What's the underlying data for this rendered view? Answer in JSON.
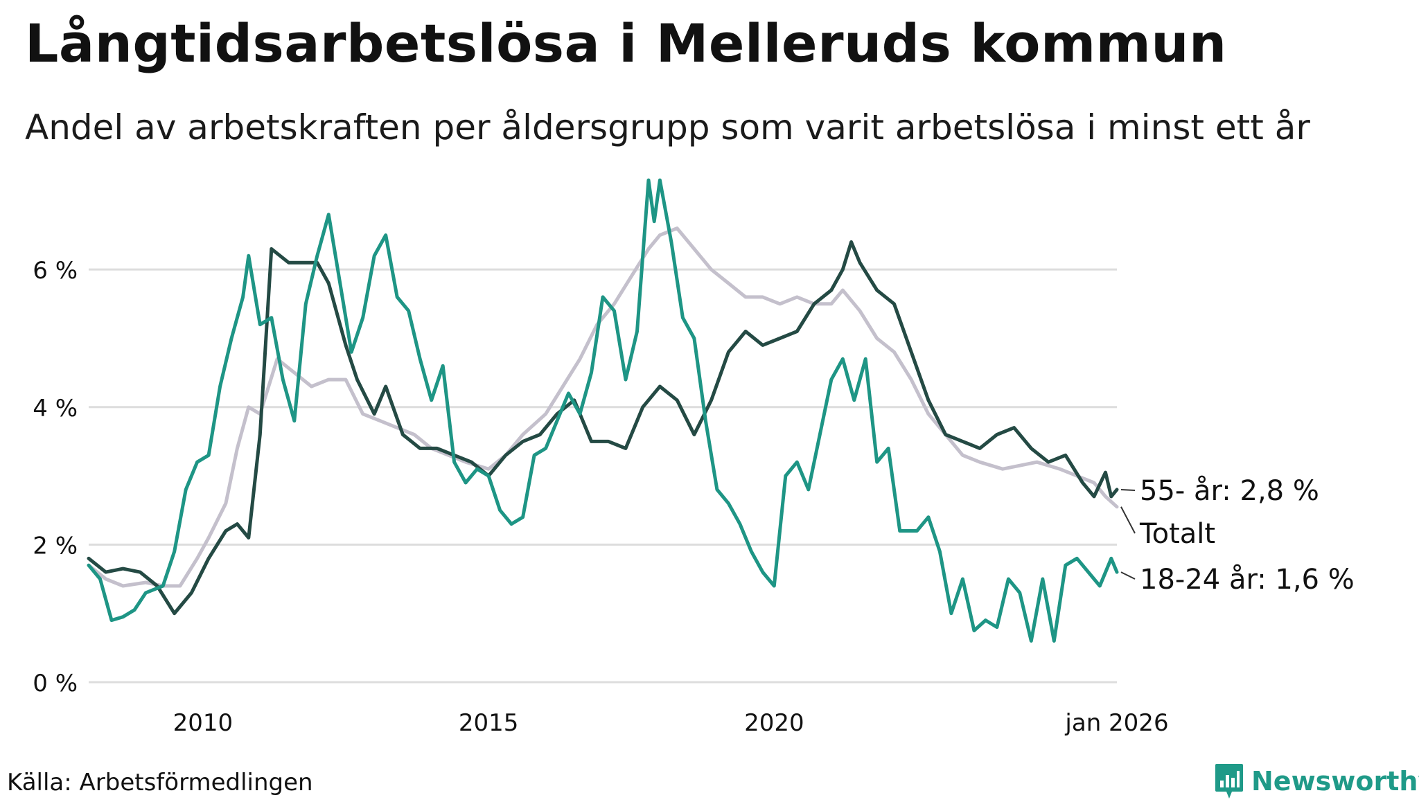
{
  "title": "Långtidsarbetslösa i Melleruds kommun",
  "subtitle": "Andel av arbetskraften per åldersgrupp som varit arbetslösa i minst ett år",
  "source": "Källa: Arbetsförmedlingen",
  "brand": "Newsworthy",
  "colors": {
    "totalt": "#c4c0cc",
    "age55": "#244a44",
    "age18_24": "#1e9585",
    "grid": "#dddddd",
    "brand": "#1f9a88"
  },
  "chart_data": {
    "type": "line",
    "title": "Långtidsarbetslösa i Melleruds kommun",
    "xlabel": "",
    "ylabel": "",
    "ylim": [
      0,
      7.2
    ],
    "xlim": [
      2008.0,
      2026.0
    ],
    "y_ticks": [
      {
        "value": 0,
        "label": "0 %"
      },
      {
        "value": 2,
        "label": "2 %"
      },
      {
        "value": 4,
        "label": "4 %"
      },
      {
        "value": 6,
        "label": "6 %"
      }
    ],
    "x_ticks": [
      {
        "value": 2010,
        "label": "2010"
      },
      {
        "value": 2015,
        "label": "2015"
      },
      {
        "value": 2020,
        "label": "2020"
      },
      {
        "value": 2026,
        "label": "jan 2026"
      }
    ],
    "series": [
      {
        "name": "Totalt",
        "label": "Totalt",
        "color": "#c4c0cc",
        "points": [
          [
            2008.0,
            1.7
          ],
          [
            2008.3,
            1.5
          ],
          [
            2008.6,
            1.4
          ],
          [
            2009.0,
            1.45
          ],
          [
            2009.3,
            1.4
          ],
          [
            2009.6,
            1.4
          ],
          [
            2009.9,
            1.8
          ],
          [
            2010.1,
            2.1
          ],
          [
            2010.4,
            2.6
          ],
          [
            2010.6,
            3.4
          ],
          [
            2010.8,
            4.0
          ],
          [
            2011.0,
            3.9
          ],
          [
            2011.3,
            4.7
          ],
          [
            2011.6,
            4.5
          ],
          [
            2011.9,
            4.3
          ],
          [
            2012.2,
            4.4
          ],
          [
            2012.5,
            4.4
          ],
          [
            2012.8,
            3.9
          ],
          [
            2013.1,
            3.8
          ],
          [
            2013.4,
            3.7
          ],
          [
            2013.7,
            3.6
          ],
          [
            2014.0,
            3.4
          ],
          [
            2014.3,
            3.3
          ],
          [
            2014.6,
            3.2
          ],
          [
            2015.0,
            3.1
          ],
          [
            2015.3,
            3.3
          ],
          [
            2015.6,
            3.6
          ],
          [
            2016.0,
            3.9
          ],
          [
            2016.3,
            4.3
          ],
          [
            2016.6,
            4.7
          ],
          [
            2016.9,
            5.2
          ],
          [
            2017.2,
            5.5
          ],
          [
            2017.5,
            5.9
          ],
          [
            2017.8,
            6.3
          ],
          [
            2018.0,
            6.5
          ],
          [
            2018.3,
            6.6
          ],
          [
            2018.6,
            6.3
          ],
          [
            2018.9,
            6.0
          ],
          [
            2019.2,
            5.8
          ],
          [
            2019.5,
            5.6
          ],
          [
            2019.8,
            5.6
          ],
          [
            2020.1,
            5.5
          ],
          [
            2020.4,
            5.6
          ],
          [
            2020.7,
            5.5
          ],
          [
            2021.0,
            5.5
          ],
          [
            2021.2,
            5.7
          ],
          [
            2021.5,
            5.4
          ],
          [
            2021.8,
            5.0
          ],
          [
            2022.1,
            4.8
          ],
          [
            2022.4,
            4.4
          ],
          [
            2022.7,
            3.9
          ],
          [
            2023.0,
            3.6
          ],
          [
            2023.3,
            3.3
          ],
          [
            2023.6,
            3.2
          ],
          [
            2024.0,
            3.1
          ],
          [
            2024.3,
            3.15
          ],
          [
            2024.6,
            3.2
          ],
          [
            2025.0,
            3.1
          ],
          [
            2025.3,
            3.0
          ],
          [
            2025.6,
            2.9
          ],
          [
            2025.8,
            2.7
          ],
          [
            2026.0,
            2.55
          ]
        ]
      },
      {
        "name": "55- år",
        "label": "55- år: 2,8 %",
        "color": "#244a44",
        "points": [
          [
            2008.0,
            1.8
          ],
          [
            2008.3,
            1.6
          ],
          [
            2008.6,
            1.65
          ],
          [
            2008.9,
            1.6
          ],
          [
            2009.2,
            1.4
          ],
          [
            2009.5,
            1.0
          ],
          [
            2009.8,
            1.3
          ],
          [
            2010.1,
            1.8
          ],
          [
            2010.4,
            2.2
          ],
          [
            2010.6,
            2.3
          ],
          [
            2010.8,
            2.1
          ],
          [
            2011.0,
            3.6
          ],
          [
            2011.2,
            6.3
          ],
          [
            2011.5,
            6.1
          ],
          [
            2011.7,
            6.1
          ],
          [
            2012.0,
            6.1
          ],
          [
            2012.2,
            5.8
          ],
          [
            2012.5,
            4.9
          ],
          [
            2012.7,
            4.4
          ],
          [
            2013.0,
            3.9
          ],
          [
            2013.2,
            4.3
          ],
          [
            2013.5,
            3.6
          ],
          [
            2013.8,
            3.4
          ],
          [
            2014.1,
            3.4
          ],
          [
            2014.4,
            3.3
          ],
          [
            2014.7,
            3.2
          ],
          [
            2015.0,
            3.0
          ],
          [
            2015.3,
            3.3
          ],
          [
            2015.6,
            3.5
          ],
          [
            2015.9,
            3.6
          ],
          [
            2016.2,
            3.9
          ],
          [
            2016.5,
            4.1
          ],
          [
            2016.8,
            3.5
          ],
          [
            2017.1,
            3.5
          ],
          [
            2017.4,
            3.4
          ],
          [
            2017.7,
            4.0
          ],
          [
            2018.0,
            4.3
          ],
          [
            2018.3,
            4.1
          ],
          [
            2018.6,
            3.6
          ],
          [
            2018.9,
            4.1
          ],
          [
            2019.2,
            4.8
          ],
          [
            2019.5,
            5.1
          ],
          [
            2019.8,
            4.9
          ],
          [
            2020.1,
            5.0
          ],
          [
            2020.4,
            5.1
          ],
          [
            2020.7,
            5.5
          ],
          [
            2021.0,
            5.7
          ],
          [
            2021.2,
            6.0
          ],
          [
            2021.35,
            6.4
          ],
          [
            2021.5,
            6.1
          ],
          [
            2021.8,
            5.7
          ],
          [
            2022.1,
            5.5
          ],
          [
            2022.4,
            4.8
          ],
          [
            2022.7,
            4.1
          ],
          [
            2023.0,
            3.6
          ],
          [
            2023.3,
            3.5
          ],
          [
            2023.6,
            3.4
          ],
          [
            2023.9,
            3.6
          ],
          [
            2024.2,
            3.7
          ],
          [
            2024.5,
            3.4
          ],
          [
            2024.8,
            3.2
          ],
          [
            2025.1,
            3.3
          ],
          [
            2025.4,
            2.9
          ],
          [
            2025.6,
            2.7
          ],
          [
            2025.8,
            3.05
          ],
          [
            2025.9,
            2.7
          ],
          [
            2026.0,
            2.8
          ]
        ]
      },
      {
        "name": "18-24 år",
        "label": "18-24 år: 1,6 %",
        "color": "#1e9585",
        "points": [
          [
            2008.0,
            1.7
          ],
          [
            2008.2,
            1.5
          ],
          [
            2008.4,
            0.9
          ],
          [
            2008.6,
            0.95
          ],
          [
            2008.8,
            1.05
          ],
          [
            2009.0,
            1.3
          ],
          [
            2009.3,
            1.4
          ],
          [
            2009.5,
            1.9
          ],
          [
            2009.7,
            2.8
          ],
          [
            2009.9,
            3.2
          ],
          [
            2010.1,
            3.3
          ],
          [
            2010.3,
            4.3
          ],
          [
            2010.5,
            5.0
          ],
          [
            2010.7,
            5.6
          ],
          [
            2010.8,
            6.2
          ],
          [
            2011.0,
            5.2
          ],
          [
            2011.2,
            5.3
          ],
          [
            2011.4,
            4.4
          ],
          [
            2011.6,
            3.8
          ],
          [
            2011.8,
            5.5
          ],
          [
            2012.0,
            6.2
          ],
          [
            2012.2,
            6.8
          ],
          [
            2012.4,
            5.8
          ],
          [
            2012.6,
            4.8
          ],
          [
            2012.8,
            5.3
          ],
          [
            2013.0,
            6.2
          ],
          [
            2013.2,
            6.5
          ],
          [
            2013.4,
            5.6
          ],
          [
            2013.6,
            5.4
          ],
          [
            2013.8,
            4.7
          ],
          [
            2014.0,
            4.1
          ],
          [
            2014.2,
            4.6
          ],
          [
            2014.4,
            3.2
          ],
          [
            2014.6,
            2.9
          ],
          [
            2014.8,
            3.1
          ],
          [
            2015.0,
            3.0
          ],
          [
            2015.2,
            2.5
          ],
          [
            2015.4,
            2.3
          ],
          [
            2015.6,
            2.4
          ],
          [
            2015.8,
            3.3
          ],
          [
            2016.0,
            3.4
          ],
          [
            2016.2,
            3.8
          ],
          [
            2016.4,
            4.2
          ],
          [
            2016.6,
            3.9
          ],
          [
            2016.8,
            4.5
          ],
          [
            2017.0,
            5.6
          ],
          [
            2017.2,
            5.4
          ],
          [
            2017.4,
            4.4
          ],
          [
            2017.6,
            5.1
          ],
          [
            2017.8,
            7.3
          ],
          [
            2017.9,
            6.7
          ],
          [
            2018.0,
            7.3
          ],
          [
            2018.2,
            6.4
          ],
          [
            2018.4,
            5.3
          ],
          [
            2018.6,
            5.0
          ],
          [
            2018.8,
            3.8
          ],
          [
            2019.0,
            2.8
          ],
          [
            2019.2,
            2.6
          ],
          [
            2019.4,
            2.3
          ],
          [
            2019.6,
            1.9
          ],
          [
            2019.8,
            1.6
          ],
          [
            2020.0,
            1.4
          ],
          [
            2020.2,
            3.0
          ],
          [
            2020.4,
            3.2
          ],
          [
            2020.6,
            2.8
          ],
          [
            2020.8,
            3.6
          ],
          [
            2021.0,
            4.4
          ],
          [
            2021.2,
            4.7
          ],
          [
            2021.4,
            4.1
          ],
          [
            2021.6,
            4.7
          ],
          [
            2021.8,
            3.2
          ],
          [
            2022.0,
            3.4
          ],
          [
            2022.2,
            2.2
          ],
          [
            2022.5,
            2.2
          ],
          [
            2022.7,
            2.4
          ],
          [
            2022.9,
            1.9
          ],
          [
            2023.1,
            1.0
          ],
          [
            2023.3,
            1.5
          ],
          [
            2023.5,
            0.75
          ],
          [
            2023.7,
            0.9
          ],
          [
            2023.9,
            0.8
          ],
          [
            2024.1,
            1.5
          ],
          [
            2024.3,
            1.3
          ],
          [
            2024.5,
            0.6
          ],
          [
            2024.7,
            1.5
          ],
          [
            2024.9,
            0.6
          ],
          [
            2025.1,
            1.7
          ],
          [
            2025.3,
            1.8
          ],
          [
            2025.5,
            1.6
          ],
          [
            2025.7,
            1.4
          ],
          [
            2025.9,
            1.8
          ],
          [
            2026.0,
            1.6
          ]
        ]
      }
    ]
  }
}
